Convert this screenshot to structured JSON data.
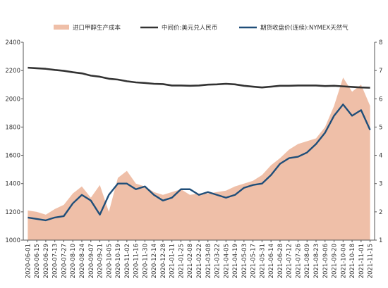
{
  "colors": {
    "cost_fill": "#efbfa8",
    "fx_line": "#333333",
    "ng_line": "#1f4e79",
    "axis": "#555555"
  },
  "legend": [
    {
      "label": "进口甲醇生产成本",
      "series": "cost",
      "kind": "area"
    },
    {
      "label": "中间价:美元兑人民币",
      "series": "fx",
      "kind": "line"
    },
    {
      "label": "期货收盘价(连续):NYMEX天然气",
      "series": "ng",
      "kind": "line"
    }
  ],
  "chart_data": {
    "type": "line",
    "x": [
      "2020-06-01",
      "2020-06-15",
      "2020-06-29",
      "2020-07-13",
      "2020-07-27",
      "2020-08-10",
      "2020-08-24",
      "2020-09-07",
      "2020-09-21",
      "2020-10-05",
      "2020-10-19",
      "2020-11-02",
      "2020-11-16",
      "2020-11-30",
      "2020-12-14",
      "2020-12-28",
      "2021-01-11",
      "2021-01-25",
      "2021-02-08",
      "2021-02-22",
      "2021-03-08",
      "2021-03-22",
      "2021-04-05",
      "2021-04-19",
      "2021-05-03",
      "2021-05-17",
      "2021-05-31",
      "2021-06-14",
      "2021-06-28",
      "2021-07-12",
      "2021-07-26",
      "2021-08-09",
      "2021-08-23",
      "2021-09-06",
      "2021-09-20",
      "2021-10-04",
      "2021-10-18",
      "2021-11-01",
      "2021-11-15"
    ],
    "ylim_left": [
      1000,
      2400
    ],
    "ylim_right": [
      1,
      8
    ],
    "yticks_left": [
      1000,
      1200,
      1400,
      1600,
      1800,
      2000,
      2200,
      2400
    ],
    "yticks_right": [
      1,
      2,
      3,
      4,
      5,
      6,
      7,
      8
    ],
    "series": [
      {
        "name": "进口甲醇生产成本",
        "axis": "left",
        "kind": "area",
        "values": [
          1210,
          1200,
          1180,
          1220,
          1250,
          1330,
          1380,
          1300,
          1390,
          1200,
          1440,
          1490,
          1400,
          1380,
          1340,
          1320,
          1340,
          1360,
          1320,
          1330,
          1330,
          1340,
          1350,
          1380,
          1400,
          1420,
          1460,
          1530,
          1580,
          1640,
          1680,
          1700,
          1720,
          1800,
          1950,
          2150,
          2050,
          2100,
          1950
        ]
      },
      {
        "name": "中间价:美元兑人民币",
        "axis": "right",
        "kind": "line",
        "values": [
          7.1,
          7.08,
          7.06,
          7.02,
          6.99,
          6.94,
          6.9,
          6.82,
          6.78,
          6.71,
          6.68,
          6.62,
          6.58,
          6.56,
          6.53,
          6.52,
          6.47,
          6.47,
          6.46,
          6.47,
          6.5,
          6.51,
          6.53,
          6.51,
          6.46,
          6.43,
          6.4,
          6.43,
          6.46,
          6.46,
          6.47,
          6.47,
          6.47,
          6.45,
          6.46,
          6.44,
          6.42,
          6.4,
          6.39
        ]
      },
      {
        "name": "期货收盘价(连续):NYMEX天然气",
        "axis": "right",
        "kind": "line",
        "values": [
          1.8,
          1.75,
          1.7,
          1.8,
          1.85,
          2.3,
          2.6,
          2.4,
          1.9,
          2.6,
          3.0,
          3.0,
          2.8,
          2.9,
          2.6,
          2.4,
          2.5,
          2.8,
          2.8,
          2.6,
          2.7,
          2.6,
          2.5,
          2.6,
          2.85,
          2.95,
          3.0,
          3.3,
          3.7,
          3.9,
          3.95,
          4.1,
          4.4,
          4.8,
          5.4,
          5.8,
          5.4,
          5.6,
          4.9
        ]
      }
    ]
  }
}
